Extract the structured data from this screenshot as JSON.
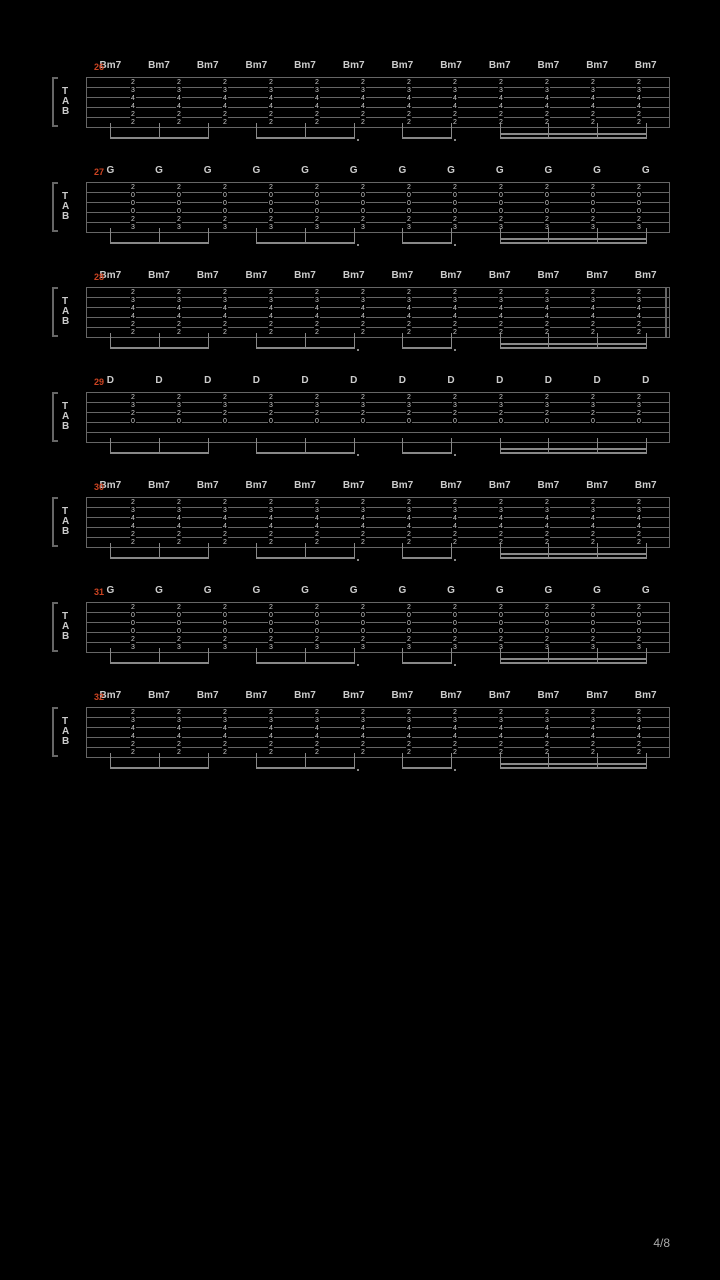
{
  "page_number": "4/8",
  "background_color": "#000000",
  "staff_line_color": "#666666",
  "text_color": "#cccccc",
  "measure_num_color": "#cc4422",
  "clef_label": "TAB",
  "string_count": 6,
  "measures": [
    {
      "number": "26",
      "chord": "Bm7",
      "frets": [
        "2",
        "3",
        "4",
        "4",
        "2",
        "2"
      ],
      "beats": 12,
      "beam_pattern": [
        [
          0,
          1,
          2
        ],
        [
          3,
          4,
          5
        ],
        [
          6,
          7
        ],
        [
          8,
          9,
          10,
          11
        ]
      ]
    },
    {
      "number": "27",
      "chord": "G",
      "frets": [
        "2",
        "0",
        "0",
        "0",
        "2",
        "3"
      ],
      "beats": 12,
      "beam_pattern": [
        [
          0,
          1,
          2
        ],
        [
          3,
          4,
          5
        ],
        [
          6,
          7
        ],
        [
          8,
          9,
          10,
          11
        ]
      ]
    },
    {
      "number": "28",
      "chord": "Bm7",
      "frets": [
        "2",
        "3",
        "4",
        "4",
        "2",
        "2"
      ],
      "beats": 12,
      "has_end_bar": true,
      "beam_pattern": [
        [
          0,
          1,
          2
        ],
        [
          3,
          4,
          5
        ],
        [
          6,
          7
        ],
        [
          8,
          9,
          10,
          11
        ]
      ]
    },
    {
      "number": "29",
      "chord": "D",
      "frets": [
        "2",
        "3",
        "2",
        "0",
        "",
        ""
      ],
      "beats": 12,
      "strum_marks": true,
      "beam_pattern": [
        [
          0,
          1,
          2
        ],
        [
          3,
          4,
          5
        ],
        [
          6,
          7
        ],
        [
          8,
          9,
          10,
          11
        ]
      ]
    },
    {
      "number": "30",
      "chord": "Bm7",
      "frets": [
        "2",
        "3",
        "4",
        "4",
        "2",
        "2"
      ],
      "beats": 12,
      "beam_pattern": [
        [
          0,
          1,
          2
        ],
        [
          3,
          4,
          5
        ],
        [
          6,
          7
        ],
        [
          8,
          9,
          10,
          11
        ]
      ]
    },
    {
      "number": "31",
      "chord": "G",
      "frets": [
        "2",
        "0",
        "0",
        "0",
        "2",
        "3"
      ],
      "beats": 12,
      "beam_pattern": [
        [
          0,
          1,
          2
        ],
        [
          3,
          4,
          5
        ],
        [
          6,
          7
        ],
        [
          8,
          9,
          10,
          11
        ]
      ]
    },
    {
      "number": "32",
      "chord": "Bm7",
      "frets": [
        "2",
        "3",
        "4",
        "4",
        "2",
        "2"
      ],
      "beats": 12,
      "beam_pattern": [
        [
          0,
          1,
          2
        ],
        [
          3,
          4,
          5
        ],
        [
          6,
          7
        ],
        [
          8,
          9,
          10,
          11
        ]
      ]
    }
  ]
}
